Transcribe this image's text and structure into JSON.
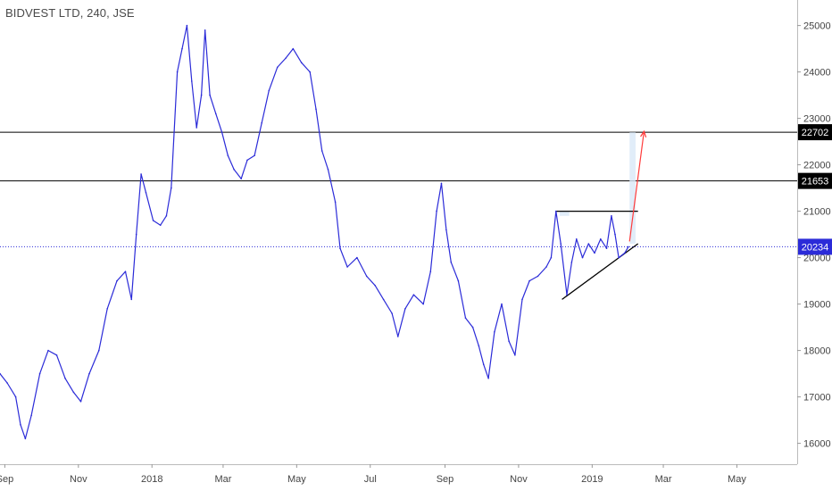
{
  "header": {
    "title": "BIDVEST LTD, 240, JSE"
  },
  "colors": {
    "price_line": "#2b2bd8",
    "current_price": "#2b2bd8",
    "resistance": "#000000",
    "projection": "#ff3b3b",
    "axis_text": "#444444",
    "projection_box": "#d9e9f7"
  },
  "chart_data": {
    "type": "line",
    "title": "BIDVEST LTD, 240, JSE",
    "xlabel": "",
    "ylabel": "",
    "x_ticks": [
      "Sep",
      "Nov",
      "2018",
      "Mar",
      "May",
      "Jul",
      "Sep",
      "Nov",
      "2019",
      "Mar",
      "May"
    ],
    "y_ticks": [
      16000,
      17000,
      18000,
      19000,
      20000,
      21000,
      22000,
      23000,
      24000,
      25000
    ],
    "ylim": [
      15550,
      25550
    ],
    "x_range": [
      "2017-08-28",
      "2019-06-20"
    ],
    "grid": false,
    "series": [
      {
        "values": [
          [
            "2017-08-28",
            17500
          ],
          [
            "2017-09-03",
            17300
          ],
          [
            "2017-09-10",
            17000
          ],
          [
            "2017-09-14",
            16400
          ],
          [
            "2017-09-18",
            16100
          ],
          [
            "2017-09-23",
            16600
          ],
          [
            "2017-09-30",
            17500
          ],
          [
            "2017-10-07",
            18000
          ],
          [
            "2017-10-14",
            17900
          ],
          [
            "2017-10-21",
            17400
          ],
          [
            "2017-10-28",
            17100
          ],
          [
            "2017-11-03",
            16900
          ],
          [
            "2017-11-10",
            17500
          ],
          [
            "2017-11-18",
            18000
          ],
          [
            "2017-11-25",
            18900
          ],
          [
            "2017-12-03",
            19500
          ],
          [
            "2017-12-10",
            19700
          ],
          [
            "2017-12-15",
            19100
          ],
          [
            "2017-12-19",
            20500
          ],
          [
            "2017-12-23",
            21800
          ],
          [
            "2017-12-27",
            21400
          ],
          [
            "2018-01-02",
            20800
          ],
          [
            "2018-01-08",
            20700
          ],
          [
            "2018-01-13",
            20900
          ],
          [
            "2018-01-17",
            21500
          ],
          [
            "2018-01-22",
            24000
          ],
          [
            "2018-01-26",
            24500
          ],
          [
            "2018-01-30",
            25000
          ],
          [
            "2018-02-03",
            23800
          ],
          [
            "2018-02-07",
            22800
          ],
          [
            "2018-02-11",
            23500
          ],
          [
            "2018-02-14",
            24900
          ],
          [
            "2018-02-18",
            23500
          ],
          [
            "2018-02-23",
            23100
          ],
          [
            "2018-02-28",
            22700
          ],
          [
            "2018-03-05",
            22200
          ],
          [
            "2018-03-10",
            21900
          ],
          [
            "2018-03-16",
            21700
          ],
          [
            "2018-03-21",
            22100
          ],
          [
            "2018-03-27",
            22200
          ],
          [
            "2018-04-02",
            22900
          ],
          [
            "2018-04-08",
            23600
          ],
          [
            "2018-04-15",
            24100
          ],
          [
            "2018-04-22",
            24300
          ],
          [
            "2018-04-28",
            24500
          ],
          [
            "2018-05-05",
            24200
          ],
          [
            "2018-05-12",
            24000
          ],
          [
            "2018-05-17",
            23200
          ],
          [
            "2018-05-22",
            22300
          ],
          [
            "2018-05-27",
            21900
          ],
          [
            "2018-06-02",
            21200
          ],
          [
            "2018-06-06",
            20200
          ],
          [
            "2018-06-12",
            19800
          ],
          [
            "2018-06-20",
            20000
          ],
          [
            "2018-06-28",
            19600
          ],
          [
            "2018-07-05",
            19400
          ],
          [
            "2018-07-12",
            19100
          ],
          [
            "2018-07-19",
            18800
          ],
          [
            "2018-07-24",
            18300
          ],
          [
            "2018-07-30",
            18900
          ],
          [
            "2018-08-06",
            19200
          ],
          [
            "2018-08-14",
            19000
          ],
          [
            "2018-08-20",
            19700
          ],
          [
            "2018-08-25",
            21000
          ],
          [
            "2018-08-29",
            21600
          ],
          [
            "2018-09-02",
            20600
          ],
          [
            "2018-09-06",
            19900
          ],
          [
            "2018-09-12",
            19500
          ],
          [
            "2018-09-18",
            18700
          ],
          [
            "2018-09-24",
            18500
          ],
          [
            "2018-09-29",
            18100
          ],
          [
            "2018-10-03",
            17700
          ],
          [
            "2018-10-07",
            17400
          ],
          [
            "2018-10-12",
            18400
          ],
          [
            "2018-10-18",
            19000
          ],
          [
            "2018-10-24",
            18200
          ],
          [
            "2018-10-29",
            17900
          ],
          [
            "2018-11-04",
            19100
          ],
          [
            "2018-11-10",
            19500
          ],
          [
            "2018-11-17",
            19600
          ],
          [
            "2018-11-24",
            19800
          ],
          [
            "2018-11-28",
            20000
          ],
          [
            "2018-12-02",
            21000
          ],
          [
            "2018-12-06",
            20300
          ],
          [
            "2018-12-11",
            19200
          ],
          [
            "2018-12-15",
            19900
          ],
          [
            "2018-12-19",
            20400
          ],
          [
            "2018-12-24",
            20000
          ],
          [
            "2018-12-29",
            20300
          ],
          [
            "2019-01-03",
            20100
          ],
          [
            "2019-01-08",
            20400
          ],
          [
            "2019-01-13",
            20200
          ],
          [
            "2019-01-17",
            20900
          ],
          [
            "2019-01-20",
            20500
          ],
          [
            "2019-01-23",
            20000
          ],
          [
            "2019-01-28",
            20100
          ],
          [
            "2019-01-31",
            20234
          ]
        ]
      }
    ],
    "annotations": [
      {
        "kind": "horizontal_line",
        "value": 22702,
        "label": "22702"
      },
      {
        "kind": "horizontal_line",
        "value": 21653,
        "label": "21653"
      },
      {
        "kind": "current_price_line",
        "value": 20234,
        "label": "20234"
      },
      {
        "kind": "segment",
        "from": [
          "2018-12-02",
          21000
        ],
        "to": [
          "2019-02-08",
          21000
        ]
      },
      {
        "kind": "trendline",
        "from": [
          "2018-12-07",
          19100
        ],
        "to": [
          "2019-02-08",
          20300
        ]
      },
      {
        "kind": "projection_arrow",
        "from": [
          "2019-02-01",
          20350
        ],
        "to": [
          "2019-02-13",
          22720
        ]
      },
      {
        "kind": "highlight_box",
        "from": [
          "2019-02-01",
          20300
        ],
        "to": [
          "2019-02-06",
          22700
        ]
      },
      {
        "kind": "highlight_box",
        "from": [
          "2018-12-05",
          20900
        ],
        "to": [
          "2018-12-13",
          21000
        ]
      }
    ]
  }
}
